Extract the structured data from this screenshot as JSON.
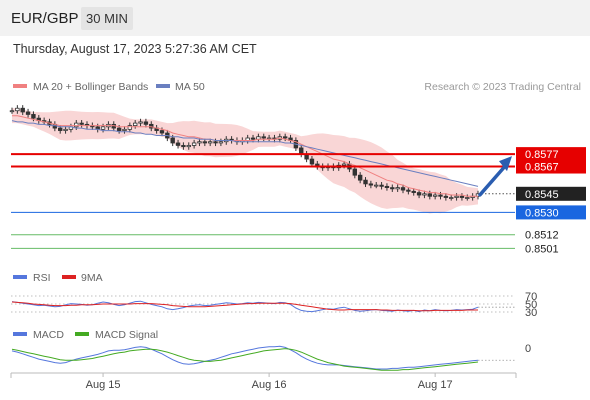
{
  "header": {
    "pair": "EUR/GBP",
    "timeframe": "30 MIN"
  },
  "datetime": "Thursday, August 17, 2023 5:27:36 AM CET",
  "legend": {
    "ma20": "MA 20 + Bollinger Bands",
    "ma50": "MA 50",
    "copyright": "Research © 2023 Trading Central",
    "rsi": "RSI",
    "rsi_ma": "9MA",
    "macd": "MACD",
    "macd_signal": "MACD Signal"
  },
  "colors": {
    "candle": "#333333",
    "bollinger_fill": "#f9d6d6",
    "ma20": "#f08080",
    "ma50": "#6a7fc0",
    "resistance": "#e60000",
    "current": "#222222",
    "pivot": "#1a66e0",
    "support": "#66bb66",
    "rsi": "#5577dd",
    "rsi_ma": "#dd2222",
    "macd": "#5577dd",
    "macd_signal": "#44aa22",
    "arrow": "#2a5db0"
  },
  "chart_data": {
    "type": "candlestick",
    "x_ticks": [
      "Aug 15",
      "Aug 16",
      "Aug 17"
    ],
    "price_levels": [
      {
        "value": 0.8577,
        "label": "0.8577",
        "kind": "resistance"
      },
      {
        "value": 0.8567,
        "label": "0.8567",
        "kind": "resistance"
      },
      {
        "value": 0.8545,
        "label": "0.8545",
        "kind": "current"
      },
      {
        "value": 0.853,
        "label": "0.8530",
        "kind": "pivot"
      },
      {
        "value": 0.8512,
        "label": "0.8512",
        "kind": "support"
      },
      {
        "value": 0.8501,
        "label": "0.8501",
        "kind": "support"
      }
    ],
    "close": [
      0.8612,
      0.8614,
      0.8611,
      0.8609,
      0.8606,
      0.8604,
      0.8603,
      0.8601,
      0.8598,
      0.8596,
      0.8597,
      0.8599,
      0.8602,
      0.8601,
      0.86,
      0.8599,
      0.8597,
      0.8599,
      0.8601,
      0.8598,
      0.8596,
      0.8597,
      0.86,
      0.8602,
      0.8603,
      0.8601,
      0.8598,
      0.8596,
      0.8594,
      0.859,
      0.8586,
      0.8584,
      0.8583,
      0.8584,
      0.8586,
      0.8587,
      0.8586,
      0.8587,
      0.8586,
      0.8587,
      0.8589,
      0.8588,
      0.8587,
      0.8588,
      0.859,
      0.8589,
      0.8591,
      0.859,
      0.859,
      0.8589,
      0.8591,
      0.859,
      0.8588,
      0.8582,
      0.8577,
      0.8573,
      0.8569,
      0.8567,
      0.8566,
      0.8567,
      0.8566,
      0.8568,
      0.8569,
      0.8565,
      0.856,
      0.8556,
      0.8553,
      0.8552,
      0.8552,
      0.8551,
      0.855,
      0.8549,
      0.855,
      0.8548,
      0.8547,
      0.8546,
      0.8544,
      0.8545,
      0.8543,
      0.8544,
      0.8543,
      0.8542,
      0.8542,
      0.8543,
      0.8542,
      0.8542,
      0.8543,
      0.8545
    ],
    "ma20": [
      0.8608,
      0.8608,
      0.8607,
      0.8606,
      0.8605,
      0.8604,
      0.8603,
      0.8602,
      0.8601,
      0.86,
      0.86,
      0.86,
      0.86,
      0.86,
      0.86,
      0.86,
      0.86,
      0.86,
      0.86,
      0.86,
      0.8599,
      0.8599,
      0.8599,
      0.8599,
      0.8599,
      0.8599,
      0.8599,
      0.8598,
      0.8597,
      0.8596,
      0.8594,
      0.8593,
      0.8592,
      0.8591,
      0.8591,
      0.859,
      0.8589,
      0.8589,
      0.8588,
      0.8588,
      0.8588,
      0.8588,
      0.8588,
      0.8588,
      0.8588,
      0.8588,
      0.8589,
      0.8589,
      0.8589,
      0.8589,
      0.859,
      0.8589,
      0.8588,
      0.8587,
      0.8585,
      0.8583,
      0.8581,
      0.8579,
      0.8577,
      0.8575,
      0.8573,
      0.8572,
      0.8571,
      0.8569,
      0.8568,
      0.8566,
      0.8564,
      0.8562,
      0.856,
      0.8558,
      0.8556,
      0.8555,
      0.8553,
      0.8552,
      0.855,
      0.8549,
      0.8548,
      0.8547,
      0.8546,
      0.8546,
      0.8545,
      0.8545,
      0.8544,
      0.8544,
      0.8544,
      0.8543,
      0.8543,
      0.8543
    ],
    "ma50": [
      0.8604,
      0.8603,
      0.8603,
      0.8602,
      0.8602,
      0.8601,
      0.8601,
      0.86,
      0.86,
      0.8599,
      0.8599,
      0.8599,
      0.8598,
      0.8598,
      0.8597,
      0.8597,
      0.8597,
      0.8596,
      0.8596,
      0.8596,
      0.8595,
      0.8595,
      0.8595,
      0.8594,
      0.8594,
      0.8593,
      0.8593,
      0.8592,
      0.8592,
      0.8592,
      0.8591,
      0.8591,
      0.859,
      0.859,
      0.859,
      0.8589,
      0.8589,
      0.8589,
      0.8588,
      0.8588,
      0.8588,
      0.8588,
      0.8587,
      0.8587,
      0.8587,
      0.8587,
      0.8587,
      0.8587,
      0.8587,
      0.8587,
      0.8587,
      0.8586,
      0.8586,
      0.8585,
      0.8584,
      0.8583,
      0.8582,
      0.8581,
      0.858,
      0.8579,
      0.8578,
      0.8577,
      0.8576,
      0.8575,
      0.8574,
      0.8573,
      0.8572,
      0.8571,
      0.857,
      0.8569,
      0.8568,
      0.8567,
      0.8566,
      0.8565,
      0.8564,
      0.8563,
      0.8562,
      0.8561,
      0.856,
      0.8559,
      0.8558,
      0.8557,
      0.8556,
      0.8555,
      0.8554,
      0.8553,
      0.8552,
      0.8551
    ],
    "rsi_levels": [
      70,
      50,
      30
    ],
    "rsi": [
      56,
      54,
      52,
      50,
      48,
      46,
      47,
      45,
      43,
      44,
      48,
      51,
      50,
      49,
      47,
      48,
      52,
      55,
      53,
      49,
      46,
      48,
      52,
      56,
      57,
      53,
      49,
      46,
      43,
      38,
      36,
      38,
      41,
      45,
      47,
      48,
      46,
      47,
      49,
      51,
      53,
      52,
      50,
      51,
      53,
      52,
      54,
      53,
      52,
      51,
      54,
      53,
      49,
      40,
      34,
      32,
      31,
      33,
      36,
      38,
      37,
      40,
      42,
      38,
      34,
      32,
      33,
      35,
      36,
      34,
      33,
      32,
      35,
      33,
      32,
      34,
      31,
      35,
      33,
      36,
      34,
      33,
      34,
      36,
      35,
      36,
      37,
      42
    ],
    "rsi_ma": [
      55,
      54,
      53,
      52,
      50,
      49,
      48,
      47,
      46,
      46,
      46,
      47,
      47,
      48,
      48,
      48,
      49,
      50,
      50,
      50,
      50,
      50,
      50,
      51,
      51,
      51,
      51,
      50,
      49,
      48,
      46,
      45,
      44,
      43,
      43,
      43,
      43,
      44,
      45,
      46,
      47,
      48,
      49,
      50,
      51,
      51,
      52,
      52,
      52,
      52,
      52,
      52,
      51,
      49,
      47,
      45,
      43,
      41,
      39,
      37,
      36,
      35,
      35,
      36,
      36,
      36,
      36,
      36,
      36,
      35,
      35,
      34,
      34,
      34,
      34,
      34,
      33,
      33,
      33,
      34,
      34,
      34,
      34,
      34,
      34,
      35,
      35,
      35
    ],
    "macd_zero": 0,
    "macd": [
      -5e-05,
      -7e-05,
      -0.0001,
      -0.00013,
      -0.00016,
      -0.00019,
      -0.00021,
      -0.00023,
      -0.00025,
      -0.00026,
      -0.00025,
      -0.00022,
      -0.00019,
      -0.00017,
      -0.00015,
      -0.00013,
      -0.00011,
      -8e-05,
      -5e-05,
      -4e-05,
      -4e-05,
      -3e-05,
      -1e-05,
      1e-05,
      2e-05,
      1e-05,
      -2e-05,
      -6e-05,
      -0.0001,
      -0.00015,
      -0.0002,
      -0.00024,
      -0.00027,
      -0.00028,
      -0.00027,
      -0.00025,
      -0.00023,
      -0.00021,
      -0.00019,
      -0.00016,
      -0.00013,
      -0.0001,
      -8e-05,
      -6e-05,
      -4e-05,
      -2e-05,
      0.0,
      1e-05,
      2e-05,
      2e-05,
      3e-05,
      1e-05,
      -3e-05,
      -8e-05,
      -0.00014,
      -0.00019,
      -0.00023,
      -0.00026,
      -0.00028,
      -0.00029,
      -0.00029,
      -0.00029,
      -0.0003,
      -0.00031,
      -0.00032,
      -0.00033,
      -0.00034,
      -0.00035,
      -0.00036,
      -0.00036,
      -0.00036,
      -0.00035,
      -0.00035,
      -0.00034,
      -0.00033,
      -0.00033,
      -0.00032,
      -0.00031,
      -0.0003,
      -0.00029,
      -0.00028,
      -0.00027,
      -0.00026,
      -0.00025,
      -0.00024,
      -0.00023,
      -0.00022,
      -0.00021
    ],
    "macd_signal": [
      -2e-05,
      -4e-05,
      -6e-05,
      -8e-05,
      -0.0001,
      -0.00012,
      -0.00014,
      -0.00016,
      -0.00018,
      -0.0002,
      -0.00021,
      -0.00021,
      -0.00021,
      -0.0002,
      -0.00019,
      -0.00018,
      -0.00016,
      -0.00014,
      -0.00012,
      -0.0001,
      -8e-05,
      -7e-05,
      -5e-05,
      -4e-05,
      -3e-05,
      -2e-05,
      -2e-05,
      -3e-05,
      -5e-05,
      -7e-05,
      -0.0001,
      -0.00013,
      -0.00016,
      -0.00019,
      -0.00021,
      -0.00022,
      -0.00023,
      -0.00023,
      -0.00022,
      -0.00021,
      -0.00019,
      -0.00017,
      -0.00015,
      -0.00013,
      -0.00011,
      -9e-05,
      -7e-05,
      -5e-05,
      -4e-05,
      -3e-05,
      -2e-05,
      -1e-05,
      -2e-05,
      -4e-05,
      -7e-05,
      -0.00011,
      -0.00015,
      -0.00019,
      -0.00022,
      -0.00025,
      -0.00027,
      -0.00029,
      -0.00031,
      -0.00032,
      -0.00033,
      -0.00034,
      -0.00035,
      -0.00036,
      -0.00037,
      -0.00038,
      -0.00038,
      -0.00038,
      -0.00038,
      -0.00037,
      -0.00037,
      -0.00036,
      -0.00035,
      -0.00034,
      -0.00033,
      -0.00032,
      -0.00031,
      -0.0003,
      -0.00029,
      -0.00028,
      -0.00027,
      -0.00026,
      -0.00025,
      -0.00024
    ]
  }
}
